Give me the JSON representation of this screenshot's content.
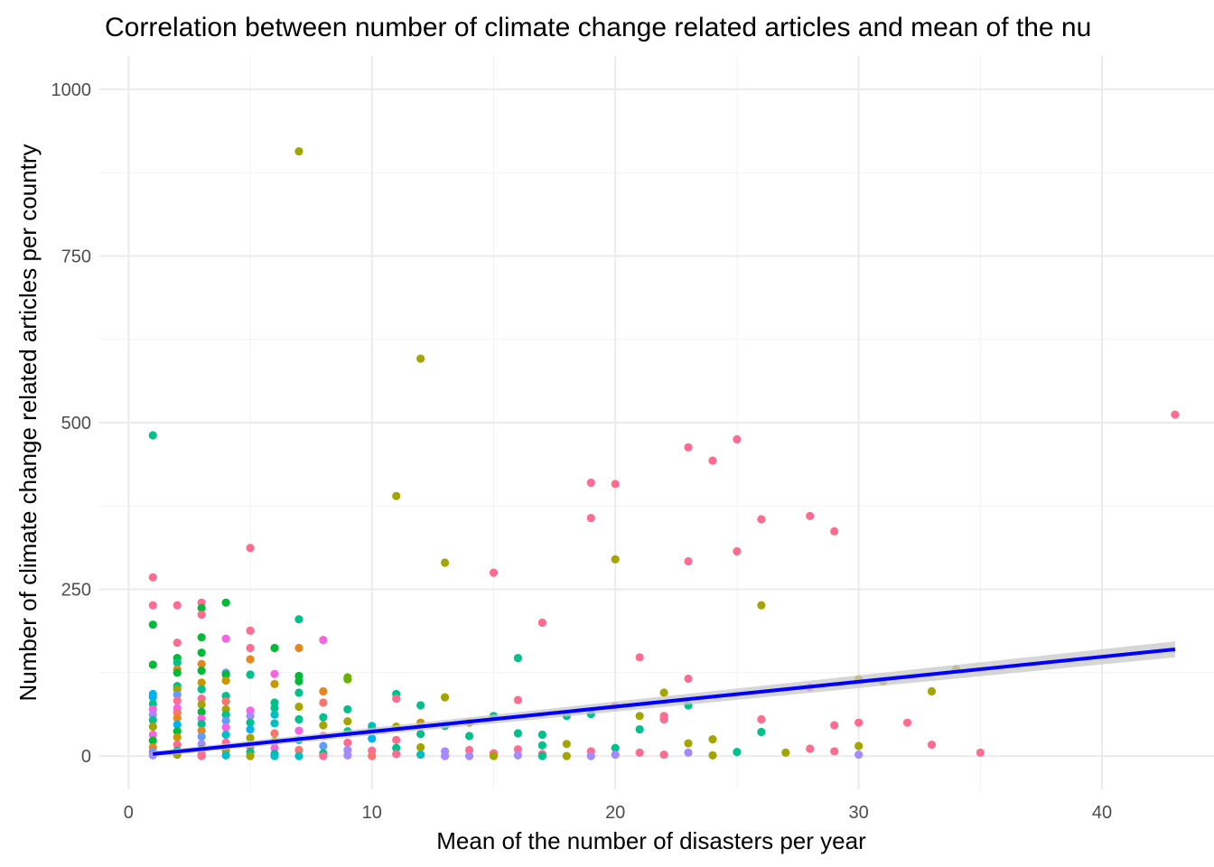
{
  "chart_data": {
    "type": "scatter",
    "title": "Correlation between number of climate change related articles and mean of the nu",
    "xlabel": "Mean of the number of disasters per year",
    "ylabel": "Number of climate change related articles per country",
    "xlim": [
      -1.2,
      44.6
    ],
    "ylim": [
      -50,
      1050
    ],
    "x_ticks": [
      0,
      10,
      20,
      30,
      40
    ],
    "y_ticks": [
      0,
      250,
      500,
      750,
      1000
    ],
    "grid": true,
    "legend": "none",
    "colors": {
      "fit_line": "#0000ff",
      "confidence_band": "#c8c8c8",
      "point_palette": [
        "#f8766d",
        "#e7861b",
        "#c99800",
        "#a3a500",
        "#6bb100",
        "#00ba38",
        "#00c08b",
        "#00bfc4",
        "#00b4f0",
        "#619cff",
        "#a58aff",
        "#f564e3",
        "#ff6c91"
      ]
    },
    "trend_line": {
      "type": "linear",
      "x": [
        1,
        43
      ],
      "y": [
        3,
        160
      ],
      "band_halfwidth": [
        4,
        12
      ]
    },
    "points": [
      {
        "x": 7,
        "y": 907,
        "c": "#a3a500"
      },
      {
        "x": 12,
        "y": 596,
        "c": "#a3a500"
      },
      {
        "x": 43,
        "y": 512,
        "c": "#ff6c91"
      },
      {
        "x": 1,
        "y": 481,
        "c": "#00c08b"
      },
      {
        "x": 25,
        "y": 475,
        "c": "#ff6c91"
      },
      {
        "x": 23,
        "y": 463,
        "c": "#ff6c91"
      },
      {
        "x": 24,
        "y": 443,
        "c": "#ff6c91"
      },
      {
        "x": 19,
        "y": 410,
        "c": "#ff6c91"
      },
      {
        "x": 20,
        "y": 408,
        "c": "#ff6c91"
      },
      {
        "x": 11,
        "y": 390,
        "c": "#a3a500"
      },
      {
        "x": 28,
        "y": 360,
        "c": "#ff6c91"
      },
      {
        "x": 19,
        "y": 357,
        "c": "#ff6c91"
      },
      {
        "x": 26,
        "y": 355,
        "c": "#ff6c91"
      },
      {
        "x": 29,
        "y": 337,
        "c": "#ff6c91"
      },
      {
        "x": 5,
        "y": 312,
        "c": "#ff6c91"
      },
      {
        "x": 25,
        "y": 307,
        "c": "#ff6c91"
      },
      {
        "x": 20,
        "y": 295,
        "c": "#a3a500"
      },
      {
        "x": 23,
        "y": 292,
        "c": "#ff6c91"
      },
      {
        "x": 13,
        "y": 290,
        "c": "#a3a500"
      },
      {
        "x": 15,
        "y": 275,
        "c": "#ff6c91"
      },
      {
        "x": 1,
        "y": 268,
        "c": "#ff6c91"
      },
      {
        "x": 3,
        "y": 230,
        "c": "#ff6c91"
      },
      {
        "x": 4,
        "y": 230,
        "c": "#00ba38"
      },
      {
        "x": 26,
        "y": 226,
        "c": "#a3a500"
      },
      {
        "x": 1,
        "y": 226,
        "c": "#ff6c91"
      },
      {
        "x": 2,
        "y": 226,
        "c": "#ff6c91"
      },
      {
        "x": 3,
        "y": 222,
        "c": "#00ba38"
      },
      {
        "x": 3,
        "y": 212,
        "c": "#ff6c91"
      },
      {
        "x": 7,
        "y": 205,
        "c": "#00c08b"
      },
      {
        "x": 17,
        "y": 200,
        "c": "#ff6c91"
      },
      {
        "x": 1,
        "y": 197,
        "c": "#00ba38"
      },
      {
        "x": 5,
        "y": 188,
        "c": "#ff6c91"
      },
      {
        "x": 3,
        "y": 178,
        "c": "#00ba38"
      },
      {
        "x": 4,
        "y": 176,
        "c": "#f564e3"
      },
      {
        "x": 8,
        "y": 174,
        "c": "#f564e3"
      },
      {
        "x": 2,
        "y": 170,
        "c": "#ff6c91"
      },
      {
        "x": 5,
        "y": 162,
        "c": "#ff6c91"
      },
      {
        "x": 6,
        "y": 162,
        "c": "#00ba38"
      },
      {
        "x": 7,
        "y": 162,
        "c": "#e7861b"
      },
      {
        "x": 3,
        "y": 155,
        "c": "#00ba38"
      },
      {
        "x": 21,
        "y": 148,
        "c": "#ff6c91"
      },
      {
        "x": 16,
        "y": 147,
        "c": "#00c08b"
      },
      {
        "x": 2,
        "y": 147,
        "c": "#00ba38"
      },
      {
        "x": 5,
        "y": 145,
        "c": "#e7861b"
      },
      {
        "x": 2,
        "y": 140,
        "c": "#00c08b"
      },
      {
        "x": 3,
        "y": 138,
        "c": "#e7861b"
      },
      {
        "x": 1,
        "y": 137,
        "c": "#00ba38"
      },
      {
        "x": 2,
        "y": 130,
        "c": "#e7861b"
      },
      {
        "x": 34,
        "y": 130,
        "c": "#a3a500"
      },
      {
        "x": 3,
        "y": 128,
        "c": "#00ba38"
      },
      {
        "x": 2,
        "y": 125,
        "c": "#00ba38"
      },
      {
        "x": 4,
        "y": 125,
        "c": "#619cff"
      },
      {
        "x": 4,
        "y": 122,
        "c": "#00ba38"
      },
      {
        "x": 6,
        "y": 123,
        "c": "#f564e3"
      },
      {
        "x": 5,
        "y": 122,
        "c": "#00c08b"
      },
      {
        "x": 7,
        "y": 120,
        "c": "#00ba38"
      },
      {
        "x": 9,
        "y": 118,
        "c": "#6bb100"
      },
      {
        "x": 9,
        "y": 115,
        "c": "#6bb100"
      },
      {
        "x": 30,
        "y": 115,
        "c": "#a3a500"
      },
      {
        "x": 23,
        "y": 116,
        "c": "#ff6c91"
      },
      {
        "x": 31,
        "y": 112,
        "c": "#a3a500"
      },
      {
        "x": 7,
        "y": 112,
        "c": "#00ba38"
      },
      {
        "x": 4,
        "y": 113,
        "c": "#c99800"
      },
      {
        "x": 3,
        "y": 110,
        "c": "#c99800"
      },
      {
        "x": 6,
        "y": 108,
        "c": "#c99800"
      },
      {
        "x": 2,
        "y": 105,
        "c": "#00c08b"
      },
      {
        "x": 28,
        "y": 103,
        "c": "#ff6c91"
      },
      {
        "x": 2,
        "y": 100,
        "c": "#a3a500"
      },
      {
        "x": 3,
        "y": 100,
        "c": "#00c08b"
      },
      {
        "x": 8,
        "y": 97,
        "c": "#e7861b"
      },
      {
        "x": 33,
        "y": 97,
        "c": "#a3a500"
      },
      {
        "x": 22,
        "y": 95,
        "c": "#a3a500"
      },
      {
        "x": 7,
        "y": 95,
        "c": "#00c08b"
      },
      {
        "x": 11,
        "y": 93,
        "c": "#00c08b"
      },
      {
        "x": 1,
        "y": 93,
        "c": "#00b4f0"
      },
      {
        "x": 2,
        "y": 92,
        "c": "#619cff"
      },
      {
        "x": 4,
        "y": 90,
        "c": "#00c08b"
      },
      {
        "x": 1,
        "y": 88,
        "c": "#00b4f0"
      },
      {
        "x": 13,
        "y": 88,
        "c": "#a3a500"
      },
      {
        "x": 3,
        "y": 86,
        "c": "#ff6c91"
      },
      {
        "x": 11,
        "y": 86,
        "c": "#ff6c91"
      },
      {
        "x": 16,
        "y": 84,
        "c": "#ff6c91"
      },
      {
        "x": 2,
        "y": 83,
        "c": "#ff6c91"
      },
      {
        "x": 4,
        "y": 82,
        "c": "#f8766d"
      },
      {
        "x": 6,
        "y": 80,
        "c": "#00c08b"
      },
      {
        "x": 8,
        "y": 80,
        "c": "#f8766d"
      },
      {
        "x": 1,
        "y": 78,
        "c": "#00c08b"
      },
      {
        "x": 3,
        "y": 77,
        "c": "#a3a500"
      },
      {
        "x": 12,
        "y": 76,
        "c": "#00c08b"
      },
      {
        "x": 20,
        "y": 75,
        "c": "#ff6c91"
      },
      {
        "x": 23,
        "y": 76,
        "c": "#00c08b"
      },
      {
        "x": 7,
        "y": 74,
        "c": "#a3a500"
      },
      {
        "x": 6,
        "y": 72,
        "c": "#00c08b"
      },
      {
        "x": 2,
        "y": 72,
        "c": "#f564e3"
      },
      {
        "x": 1,
        "y": 70,
        "c": "#f564e3"
      },
      {
        "x": 4,
        "y": 70,
        "c": "#a3a500"
      },
      {
        "x": 9,
        "y": 70,
        "c": "#00c08b"
      },
      {
        "x": 5,
        "y": 68,
        "c": "#f564e3"
      },
      {
        "x": 3,
        "y": 66,
        "c": "#00ba38"
      },
      {
        "x": 2,
        "y": 65,
        "c": "#f8766d"
      },
      {
        "x": 19,
        "y": 63,
        "c": "#00c08b"
      },
      {
        "x": 1,
        "y": 62,
        "c": "#a58aff"
      },
      {
        "x": 4,
        "y": 62,
        "c": "#00c08b"
      },
      {
        "x": 6,
        "y": 62,
        "c": "#00bfc4"
      },
      {
        "x": 5,
        "y": 60,
        "c": "#a58aff"
      },
      {
        "x": 15,
        "y": 60,
        "c": "#00c08b"
      },
      {
        "x": 18,
        "y": 60,
        "c": "#00c08b"
      },
      {
        "x": 21,
        "y": 60,
        "c": "#a3a500"
      },
      {
        "x": 22,
        "y": 60,
        "c": "#ff6c91"
      },
      {
        "x": 8,
        "y": 58,
        "c": "#00c08b"
      },
      {
        "x": 2,
        "y": 57,
        "c": "#e7861b"
      },
      {
        "x": 3,
        "y": 56,
        "c": "#f564e3"
      },
      {
        "x": 26,
        "y": 55,
        "c": "#ff6c91"
      },
      {
        "x": 7,
        "y": 55,
        "c": "#00c08b"
      },
      {
        "x": 22,
        "y": 55,
        "c": "#ff6c91"
      },
      {
        "x": 1,
        "y": 54,
        "c": "#00c08b"
      },
      {
        "x": 4,
        "y": 53,
        "c": "#619cff"
      },
      {
        "x": 9,
        "y": 52,
        "c": "#a3a500"
      },
      {
        "x": 12,
        "y": 50,
        "c": "#c99800"
      },
      {
        "x": 14,
        "y": 50,
        "c": "#a3a500"
      },
      {
        "x": 30,
        "y": 50,
        "c": "#ff6c91"
      },
      {
        "x": 32,
        "y": 50,
        "c": "#ff6c91"
      },
      {
        "x": 5,
        "y": 50,
        "c": "#00c08b"
      },
      {
        "x": 6,
        "y": 49,
        "c": "#00bfc4"
      },
      {
        "x": 3,
        "y": 48,
        "c": "#00c08b"
      },
      {
        "x": 2,
        "y": 47,
        "c": "#00b4f0"
      },
      {
        "x": 29,
        "y": 46,
        "c": "#ff6c91"
      },
      {
        "x": 8,
        "y": 46,
        "c": "#a3a500"
      },
      {
        "x": 13,
        "y": 45,
        "c": "#00c08b"
      },
      {
        "x": 10,
        "y": 45,
        "c": "#00bfc4"
      },
      {
        "x": 1,
        "y": 44,
        "c": "#a3a500"
      },
      {
        "x": 11,
        "y": 44,
        "c": "#a3a500"
      },
      {
        "x": 4,
        "y": 43,
        "c": "#f564e3"
      },
      {
        "x": 21,
        "y": 40,
        "c": "#00c08b"
      },
      {
        "x": 10,
        "y": 40,
        "c": "#00c08b"
      },
      {
        "x": 5,
        "y": 40,
        "c": "#00b4f0"
      },
      {
        "x": 3,
        "y": 38,
        "c": "#e7861b"
      },
      {
        "x": 7,
        "y": 38,
        "c": "#f564e3"
      },
      {
        "x": 2,
        "y": 37,
        "c": "#00ba38"
      },
      {
        "x": 9,
        "y": 37,
        "c": "#00c08b"
      },
      {
        "x": 26,
        "y": 36,
        "c": "#00c08b"
      },
      {
        "x": 16,
        "y": 34,
        "c": "#00c08b"
      },
      {
        "x": 6,
        "y": 34,
        "c": "#f8766d"
      },
      {
        "x": 12,
        "y": 33,
        "c": "#00c08b"
      },
      {
        "x": 17,
        "y": 32,
        "c": "#00c08b"
      },
      {
        "x": 4,
        "y": 32,
        "c": "#00bfc4"
      },
      {
        "x": 1,
        "y": 32,
        "c": "#f564e3"
      },
      {
        "x": 14,
        "y": 30,
        "c": "#00c08b"
      },
      {
        "x": 8,
        "y": 30,
        "c": "#ff6c91"
      },
      {
        "x": 3,
        "y": 29,
        "c": "#619cff"
      },
      {
        "x": 2,
        "y": 28,
        "c": "#c99800"
      },
      {
        "x": 5,
        "y": 27,
        "c": "#a3a500"
      },
      {
        "x": 10,
        "y": 26,
        "c": "#00b4f0"
      },
      {
        "x": 24,
        "y": 25,
        "c": "#a3a500"
      },
      {
        "x": 11,
        "y": 24,
        "c": "#ff6c91"
      },
      {
        "x": 7,
        "y": 24,
        "c": "#00bfc4"
      },
      {
        "x": 1,
        "y": 23,
        "c": "#00ba38"
      },
      {
        "x": 6,
        "y": 22,
        "c": "#a3a500"
      },
      {
        "x": 4,
        "y": 20,
        "c": "#ff6c91"
      },
      {
        "x": 9,
        "y": 20,
        "c": "#ff6c91"
      },
      {
        "x": 23,
        "y": 19,
        "c": "#a3a500"
      },
      {
        "x": 18,
        "y": 18,
        "c": "#a3a500"
      },
      {
        "x": 3,
        "y": 18,
        "c": "#a58aff"
      },
      {
        "x": 2,
        "y": 17,
        "c": "#ff6c91"
      },
      {
        "x": 33,
        "y": 17,
        "c": "#ff6c91"
      },
      {
        "x": 17,
        "y": 16,
        "c": "#00c08b"
      },
      {
        "x": 30,
        "y": 15,
        "c": "#a3a500"
      },
      {
        "x": 8,
        "y": 15,
        "c": "#619cff"
      },
      {
        "x": 5,
        "y": 14,
        "c": "#ff6c91"
      },
      {
        "x": 1,
        "y": 13,
        "c": "#e7861b"
      },
      {
        "x": 12,
        "y": 13,
        "c": "#a3a500"
      },
      {
        "x": 20,
        "y": 12,
        "c": "#00c08b"
      },
      {
        "x": 6,
        "y": 12,
        "c": "#f564e3"
      },
      {
        "x": 11,
        "y": 12,
        "c": "#00c08b"
      },
      {
        "x": 28,
        "y": 11,
        "c": "#ff6c91"
      },
      {
        "x": 3,
        "y": 10,
        "c": "#00ba38"
      },
      {
        "x": 16,
        "y": 10,
        "c": "#ff6c91"
      },
      {
        "x": 7,
        "y": 9,
        "c": "#f8766d"
      },
      {
        "x": 14,
        "y": 9,
        "c": "#ff6c91"
      },
      {
        "x": 9,
        "y": 9,
        "c": "#a58aff"
      },
      {
        "x": 2,
        "y": 8,
        "c": "#00c08b"
      },
      {
        "x": 10,
        "y": 8,
        "c": "#ff6c91"
      },
      {
        "x": 4,
        "y": 8,
        "c": "#c99800"
      },
      {
        "x": 29,
        "y": 7,
        "c": "#ff6c91"
      },
      {
        "x": 19,
        "y": 7,
        "c": "#ff6c91"
      },
      {
        "x": 13,
        "y": 7,
        "c": "#a58aff"
      },
      {
        "x": 25,
        "y": 6,
        "c": "#00c08b"
      },
      {
        "x": 1,
        "y": 6,
        "c": "#619cff"
      },
      {
        "x": 5,
        "y": 6,
        "c": "#00c08b"
      },
      {
        "x": 21,
        "y": 5,
        "c": "#ff6c91"
      },
      {
        "x": 27,
        "y": 5,
        "c": "#a3a500"
      },
      {
        "x": 35,
        "y": 5,
        "c": "#ff6c91"
      },
      {
        "x": 23,
        "y": 5,
        "c": "#a58aff"
      },
      {
        "x": 15,
        "y": 4,
        "c": "#ff6c91"
      },
      {
        "x": 8,
        "y": 4,
        "c": "#00c08b"
      },
      {
        "x": 3,
        "y": 3,
        "c": "#f8766d"
      },
      {
        "x": 6,
        "y": 3,
        "c": "#00c08b"
      },
      {
        "x": 11,
        "y": 3,
        "c": "#ff6c91"
      },
      {
        "x": 17,
        "y": 3,
        "c": "#ff6c91"
      },
      {
        "x": 20,
        "y": 2,
        "c": "#a58aff"
      },
      {
        "x": 30,
        "y": 2,
        "c": "#a58aff"
      },
      {
        "x": 22,
        "y": 2,
        "c": "#ff6c91"
      },
      {
        "x": 2,
        "y": 2,
        "c": "#a3a500"
      },
      {
        "x": 12,
        "y": 2,
        "c": "#00bfc4"
      },
      {
        "x": 4,
        "y": 1,
        "c": "#00bfc4"
      },
      {
        "x": 9,
        "y": 1,
        "c": "#a58aff"
      },
      {
        "x": 16,
        "y": 1,
        "c": "#a58aff"
      },
      {
        "x": 24,
        "y": 1,
        "c": "#a3a500"
      },
      {
        "x": 1,
        "y": 1,
        "c": "#a58aff"
      },
      {
        "x": 5,
        "y": 0,
        "c": "#a3a500"
      },
      {
        "x": 7,
        "y": 0,
        "c": "#00bfc4"
      },
      {
        "x": 10,
        "y": 0,
        "c": "#f8766d"
      },
      {
        "x": 13,
        "y": 0,
        "c": "#a58aff"
      },
      {
        "x": 14,
        "y": 0,
        "c": "#a58aff"
      },
      {
        "x": 15,
        "y": 0,
        "c": "#a3a500"
      },
      {
        "x": 17,
        "y": 0,
        "c": "#00c08b"
      },
      {
        "x": 18,
        "y": 0,
        "c": "#a3a500"
      },
      {
        "x": 19,
        "y": 0,
        "c": "#a58aff"
      },
      {
        "x": 3,
        "y": 0,
        "c": "#ff6c91"
      },
      {
        "x": 6,
        "y": 0,
        "c": "#00bfc4"
      },
      {
        "x": 8,
        "y": 0,
        "c": "#ff6c91"
      }
    ]
  }
}
